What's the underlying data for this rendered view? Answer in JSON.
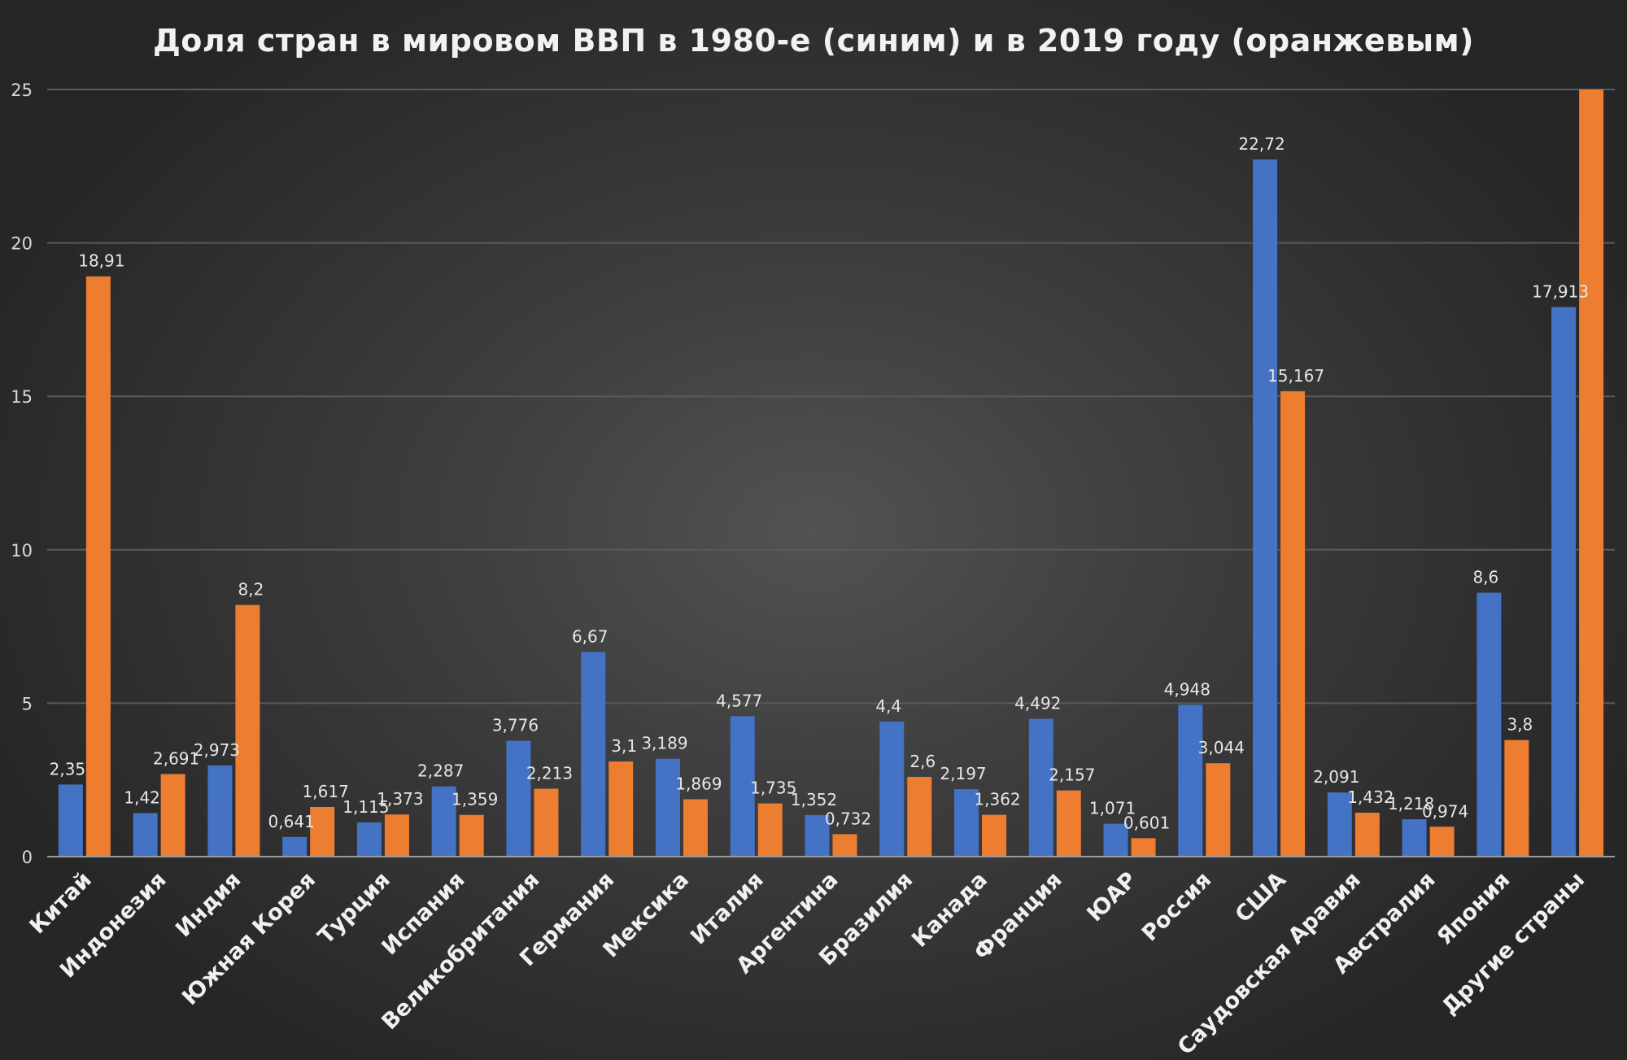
{
  "chart_data": {
    "type": "bar",
    "title": "Доля стран в мировом ВВП в 1980-е (синим) и в 2019 году (оранжевым)",
    "xlabel": "",
    "ylabel": "",
    "ylim": [
      0,
      25
    ],
    "yticks": [
      "0",
      "5",
      "10",
      "15",
      "20",
      "25"
    ],
    "grid": true,
    "legend": "none",
    "colors": {
      "series_1980": "#4472c4",
      "series_2019": "#ed7d31"
    },
    "categories": [
      "Китай",
      "Индонезия",
      "Индия",
      "Южная Корея",
      "Турция",
      "Испания",
      "Великобритания",
      "Германия",
      "Мексика",
      "Италия",
      "Аргентина",
      "Бразилия",
      "Канада",
      "Франция",
      "ЮАР",
      "Россия",
      "США",
      "Саудовская Аравия",
      "Австралия",
      "Япония",
      "Другие страны"
    ],
    "series": [
      {
        "values": [
          2.35,
          1.42,
          2.973,
          0.641,
          1.115,
          2.287,
          3.776,
          6.67,
          3.189,
          4.577,
          1.352,
          4.4,
          2.197,
          4.492,
          1.071,
          4.948,
          22.72,
          2.091,
          1.218,
          8.6,
          17.913
        ],
        "labels": [
          "2,35",
          "1,42",
          "2,973",
          "0,641",
          "1,115",
          "2,287",
          "3,776",
          "6,67",
          "3,189",
          "4,577",
          "1,352",
          "4,4",
          "2,197",
          "4,492",
          "1,071",
          "4,948",
          "22,72",
          "2,091",
          "1,218",
          "8,6",
          "17,913"
        ]
      },
      {
        "values": [
          18.91,
          2.691,
          8.2,
          1.617,
          1.373,
          1.359,
          2.213,
          3.1,
          1.869,
          1.735,
          0.732,
          2.6,
          1.362,
          2.157,
          0.601,
          3.044,
          15.167,
          1.432,
          0.974,
          3.8,
          25.5
        ],
        "labels": [
          "18,91",
          "2,691",
          "8,2",
          "1,617",
          "1,373",
          "1,359",
          "2,213",
          "3,1",
          "1,869",
          "1,735",
          "0,732",
          "2,6",
          "1,362",
          "2,157",
          "0,601",
          "3,044",
          "15,167",
          "1,432",
          "0,974",
          "3,8",
          ""
        ]
      }
    ]
  }
}
